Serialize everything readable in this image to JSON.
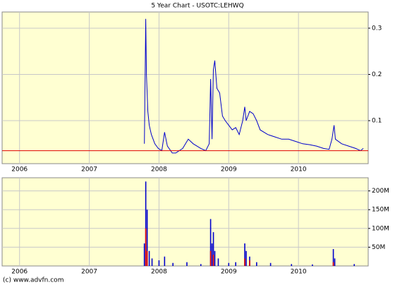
{
  "chart_data": [
    {
      "type": "line",
      "title": "5 Year Chart - USOTC:LEHWQ",
      "xlim": [
        2005.75,
        2011.0
      ],
      "xticks": [
        2006,
        2007,
        2008,
        2009,
        2010
      ],
      "ylim": [
        0.007,
        0.335
      ],
      "yticks": [
        0.1,
        0.2,
        0.3
      ],
      "grid": true,
      "ref_line": {
        "value": 0.035,
        "color": "#e00000"
      },
      "series": [
        {
          "color": "#0000cc",
          "x": [
            2007.79,
            2007.81,
            2007.82,
            2007.84,
            2007.86,
            2007.89,
            2007.94,
            2007.99,
            2008.04,
            2008.08,
            2008.12,
            2008.19,
            2008.24,
            2008.29,
            2008.34,
            2008.42,
            2008.49,
            2008.6,
            2008.67,
            2008.72,
            2008.74,
            2008.76,
            2008.78,
            2008.8,
            2008.83,
            2008.87,
            2008.91,
            2008.95,
            2009.0,
            2009.05,
            2009.1,
            2009.15,
            2009.2,
            2009.23,
            2009.25,
            2009.3,
            2009.35,
            2009.4,
            2009.45,
            2009.56,
            2009.66,
            2009.76,
            2009.86,
            2009.96,
            2010.06,
            2010.16,
            2010.26,
            2010.36,
            2010.44,
            2010.48,
            2010.51,
            2010.53,
            2010.62,
            2010.72,
            2010.82,
            2010.89,
            2010.93
          ],
          "values": [
            0.05,
            0.32,
            0.2,
            0.12,
            0.09,
            0.07,
            0.05,
            0.04,
            0.035,
            0.075,
            0.045,
            0.03,
            0.03,
            0.035,
            0.04,
            0.06,
            0.05,
            0.04,
            0.035,
            0.05,
            0.19,
            0.06,
            0.21,
            0.23,
            0.17,
            0.16,
            0.11,
            0.1,
            0.09,
            0.08,
            0.085,
            0.07,
            0.1,
            0.13,
            0.1,
            0.12,
            0.115,
            0.1,
            0.08,
            0.07,
            0.065,
            0.06,
            0.06,
            0.055,
            0.05,
            0.048,
            0.045,
            0.04,
            0.038,
            0.06,
            0.09,
            0.06,
            0.05,
            0.045,
            0.04,
            0.035,
            0.04
          ]
        }
      ]
    },
    {
      "type": "bar",
      "xlim": [
        2005.75,
        2011.0
      ],
      "xticks": [
        2006,
        2007,
        2008,
        2009,
        2010
      ],
      "ylim": [
        0,
        235000000
      ],
      "yticks": [
        {
          "value": 50000000,
          "label": "50M"
        },
        {
          "value": 100000000,
          "label": "100M"
        },
        {
          "value": 150000000,
          "label": "150M"
        },
        {
          "value": 200000000,
          "label": "200M"
        }
      ],
      "grid": true,
      "series": [
        {
          "color": "#0000cc",
          "x": [
            2007.79,
            2007.81,
            2007.83,
            2007.86,
            2007.9,
            2008.0,
            2008.08,
            2008.2,
            2008.4,
            2008.6,
            2008.74,
            2008.76,
            2008.78,
            2008.8,
            2008.85,
            2009.0,
            2009.1,
            2009.23,
            2009.25,
            2009.3,
            2009.4,
            2009.6,
            2009.9,
            2010.2,
            2010.5,
            2010.52,
            2010.8
          ],
          "values": [
            60000000,
            225000000,
            150000000,
            40000000,
            20000000,
            15000000,
            25000000,
            8000000,
            10000000,
            5000000,
            125000000,
            60000000,
            90000000,
            40000000,
            20000000,
            8000000,
            10000000,
            60000000,
            40000000,
            25000000,
            10000000,
            8000000,
            5000000,
            4000000,
            45000000,
            20000000,
            5000000
          ]
        },
        {
          "color": "#e00000",
          "x": [
            2007.81,
            2007.83,
            2008.74,
            2008.78,
            2009.23,
            2009.3,
            2010.5
          ],
          "values": [
            100000000,
            40000000,
            40000000,
            30000000,
            20000000,
            15000000,
            10000000
          ]
        }
      ]
    }
  ],
  "footer": "(c) www.advfn.com"
}
